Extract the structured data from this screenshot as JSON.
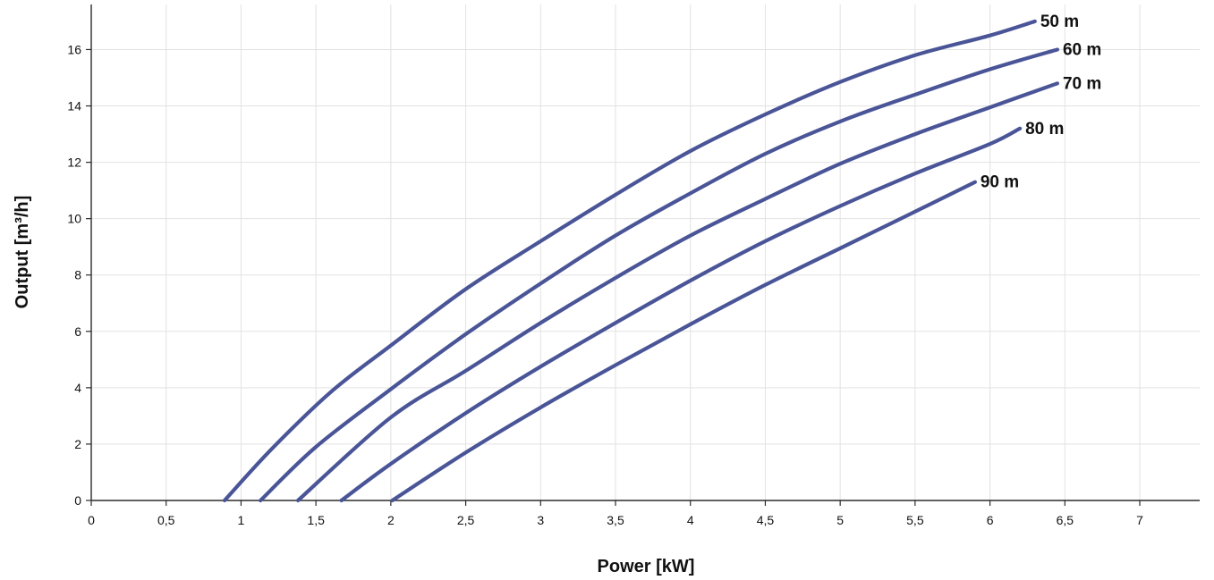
{
  "chart_data": {
    "type": "line",
    "title": "",
    "xlabel": "Power [kW]",
    "ylabel": "Output [m³/h]",
    "xlim": [
      0,
      7.4
    ],
    "ylim": [
      0,
      17.6
    ],
    "x_ticks": [
      0,
      0.5,
      1,
      1.5,
      2,
      2.5,
      3,
      3.5,
      4,
      4.5,
      5,
      5.5,
      6,
      6.5,
      7
    ],
    "x_tick_labels": [
      "0",
      "0,5",
      "1",
      "1,5",
      "2",
      "2,5",
      "3",
      "3,5",
      "4",
      "4,5",
      "5",
      "5,5",
      "6",
      "6,5",
      "7"
    ],
    "y_ticks": [
      0,
      2,
      4,
      6,
      8,
      10,
      12,
      14,
      16
    ],
    "y_tick_labels": [
      "0",
      "2",
      "4",
      "6",
      "8",
      "10",
      "12",
      "14",
      "16"
    ],
    "grid": true,
    "line_color": "#4a5598",
    "series": [
      {
        "name": "50 m",
        "points": [
          [
            0.89,
            0
          ],
          [
            1.2,
            1.8
          ],
          [
            1.6,
            3.85
          ],
          [
            2,
            5.5
          ],
          [
            2.5,
            7.5
          ],
          [
            3,
            9.2
          ],
          [
            3.5,
            10.85
          ],
          [
            4,
            12.4
          ],
          [
            4.5,
            13.7
          ],
          [
            5,
            14.85
          ],
          [
            5.5,
            15.8
          ],
          [
            6,
            16.5
          ],
          [
            6.3,
            17
          ]
        ]
      },
      {
        "name": "60 m",
        "points": [
          [
            1.13,
            0
          ],
          [
            1.5,
            1.9
          ],
          [
            2,
            3.95
          ],
          [
            2.5,
            5.9
          ],
          [
            3,
            7.7
          ],
          [
            3.5,
            9.4
          ],
          [
            4,
            10.9
          ],
          [
            4.5,
            12.3
          ],
          [
            5,
            13.45
          ],
          [
            5.5,
            14.4
          ],
          [
            6,
            15.3
          ],
          [
            6.45,
            16
          ]
        ]
      },
      {
        "name": "70 m",
        "points": [
          [
            1.38,
            0
          ],
          [
            2,
            2.95
          ],
          [
            2.5,
            4.6
          ],
          [
            3,
            6.3
          ],
          [
            3.5,
            7.9
          ],
          [
            4,
            9.4
          ],
          [
            4.5,
            10.7
          ],
          [
            5,
            11.95
          ],
          [
            5.5,
            13
          ],
          [
            6,
            13.95
          ],
          [
            6.45,
            14.8
          ]
        ]
      },
      {
        "name": "80 m",
        "points": [
          [
            1.67,
            0
          ],
          [
            2,
            1.3
          ],
          [
            2.5,
            3.1
          ],
          [
            3,
            4.75
          ],
          [
            3.5,
            6.3
          ],
          [
            4,
            7.8
          ],
          [
            4.5,
            9.2
          ],
          [
            5,
            10.45
          ],
          [
            5.5,
            11.6
          ],
          [
            6,
            12.65
          ],
          [
            6.2,
            13.2
          ]
        ]
      },
      {
        "name": "90 m",
        "points": [
          [
            2.01,
            0
          ],
          [
            2.5,
            1.7
          ],
          [
            3,
            3.3
          ],
          [
            3.5,
            4.8
          ],
          [
            4,
            6.25
          ],
          [
            4.5,
            7.65
          ],
          [
            5,
            8.95
          ],
          [
            5.5,
            10.25
          ],
          [
            5.9,
            11.3
          ]
        ]
      }
    ]
  }
}
